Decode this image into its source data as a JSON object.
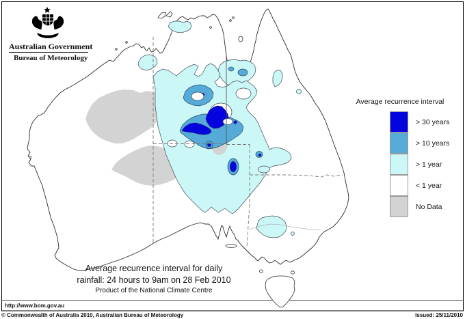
{
  "header": {
    "government": "Australian Government",
    "bureau": "Bureau of Meteorology"
  },
  "legend": {
    "title": "Average recurrence interval",
    "items": [
      {
        "label": "> 30 years",
        "color": "#0404df"
      },
      {
        "label": "> 10 years",
        "color": "#55aad8"
      },
      {
        "label": "> 1 year",
        "color": "#ccf7f7"
      },
      {
        "label": "< 1 year",
        "color": "#ffffff"
      },
      {
        "label": "No Data",
        "color": "#d3d3d3"
      }
    ]
  },
  "caption": {
    "line1": "Average recurrence interval for daily",
    "line2": "rainfall: 24 hours to 9am on 28 Feb 2010",
    "line3": "Product of the National Climate Centre"
  },
  "links": {
    "url": "http://www.bom.gov.au"
  },
  "footer": {
    "copyright": "© Commonwealth of Australia 2010, Australian Bureau of Meteorology",
    "issued": "Issued: 25/11/2010"
  },
  "colors": {
    "gt30": "#0404df",
    "gt10": "#55aad8",
    "gt1": "#ccf7f7",
    "lt1": "#ffffff",
    "nodata": "#d3d3d3"
  }
}
